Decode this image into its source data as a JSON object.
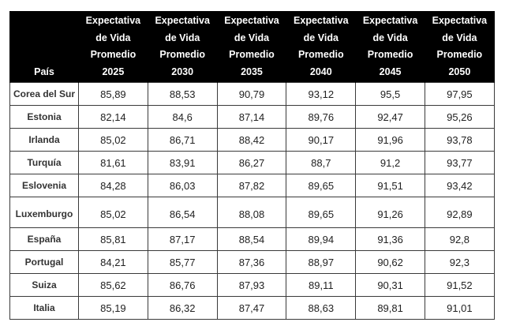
{
  "table": {
    "headers": [
      {
        "lines": [
          "País"
        ]
      },
      {
        "lines": [
          "Expectativa",
          "de Vida",
          "Promedio",
          "2025"
        ]
      },
      {
        "lines": [
          "Expectativa",
          "de Vida",
          "Promedio",
          "2030"
        ]
      },
      {
        "lines": [
          "Expectativa",
          "de Vida",
          "Promedio",
          "2035"
        ]
      },
      {
        "lines": [
          "Expectativa",
          "de Vida",
          "Promedio",
          "2040"
        ]
      },
      {
        "lines": [
          "Expectativa",
          "de Vida",
          "Promedio",
          "2045"
        ]
      },
      {
        "lines": [
          "Expectativa",
          "de Vida",
          "Promedio",
          "2050"
        ]
      }
    ],
    "rows": [
      {
        "country": "Corea del Sur",
        "values": [
          "85,89",
          "88,53",
          "90,79",
          "93,12",
          "95,5",
          "97,95"
        ]
      },
      {
        "country": "Estonia",
        "values": [
          "82,14",
          "84,6",
          "87,14",
          "89,76",
          "92,47",
          "95,26"
        ]
      },
      {
        "country": "Irlanda",
        "values": [
          "85,02",
          "86,71",
          "88,42",
          "90,17",
          "91,96",
          "93,78"
        ]
      },
      {
        "country": "Turquía",
        "values": [
          "81,61",
          "83,91",
          "86,27",
          "88,7",
          "91,2",
          "93,77"
        ]
      },
      {
        "country": "Eslovenia",
        "values": [
          "84,28",
          "86,03",
          "87,82",
          "89,65",
          "91,51",
          "93,42"
        ]
      },
      {
        "country": "Luxemburgo",
        "values": [
          "85,02",
          "86,54",
          "88,08",
          "89,65",
          "91,26",
          "92,89"
        ]
      },
      {
        "country": "España",
        "values": [
          "85,81",
          "87,17",
          "88,54",
          "89,94",
          "91,36",
          "92,8"
        ]
      },
      {
        "country": "Portugal",
        "values": [
          "84,21",
          "85,77",
          "87,36",
          "88,97",
          "90,62",
          "92,3"
        ]
      },
      {
        "country": "Suiza",
        "values": [
          "85,62",
          "86,76",
          "87,93",
          "89,11",
          "90,31",
          "91,52"
        ]
      },
      {
        "country": "Italia",
        "values": [
          "85,19",
          "86,32",
          "87,47",
          "88,63",
          "89,81",
          "91,01"
        ]
      }
    ]
  },
  "colors": {
    "header_bg": "#000000",
    "header_text": "#ffffff",
    "grid": "#3a3a3a",
    "cell_text": "#222222"
  }
}
